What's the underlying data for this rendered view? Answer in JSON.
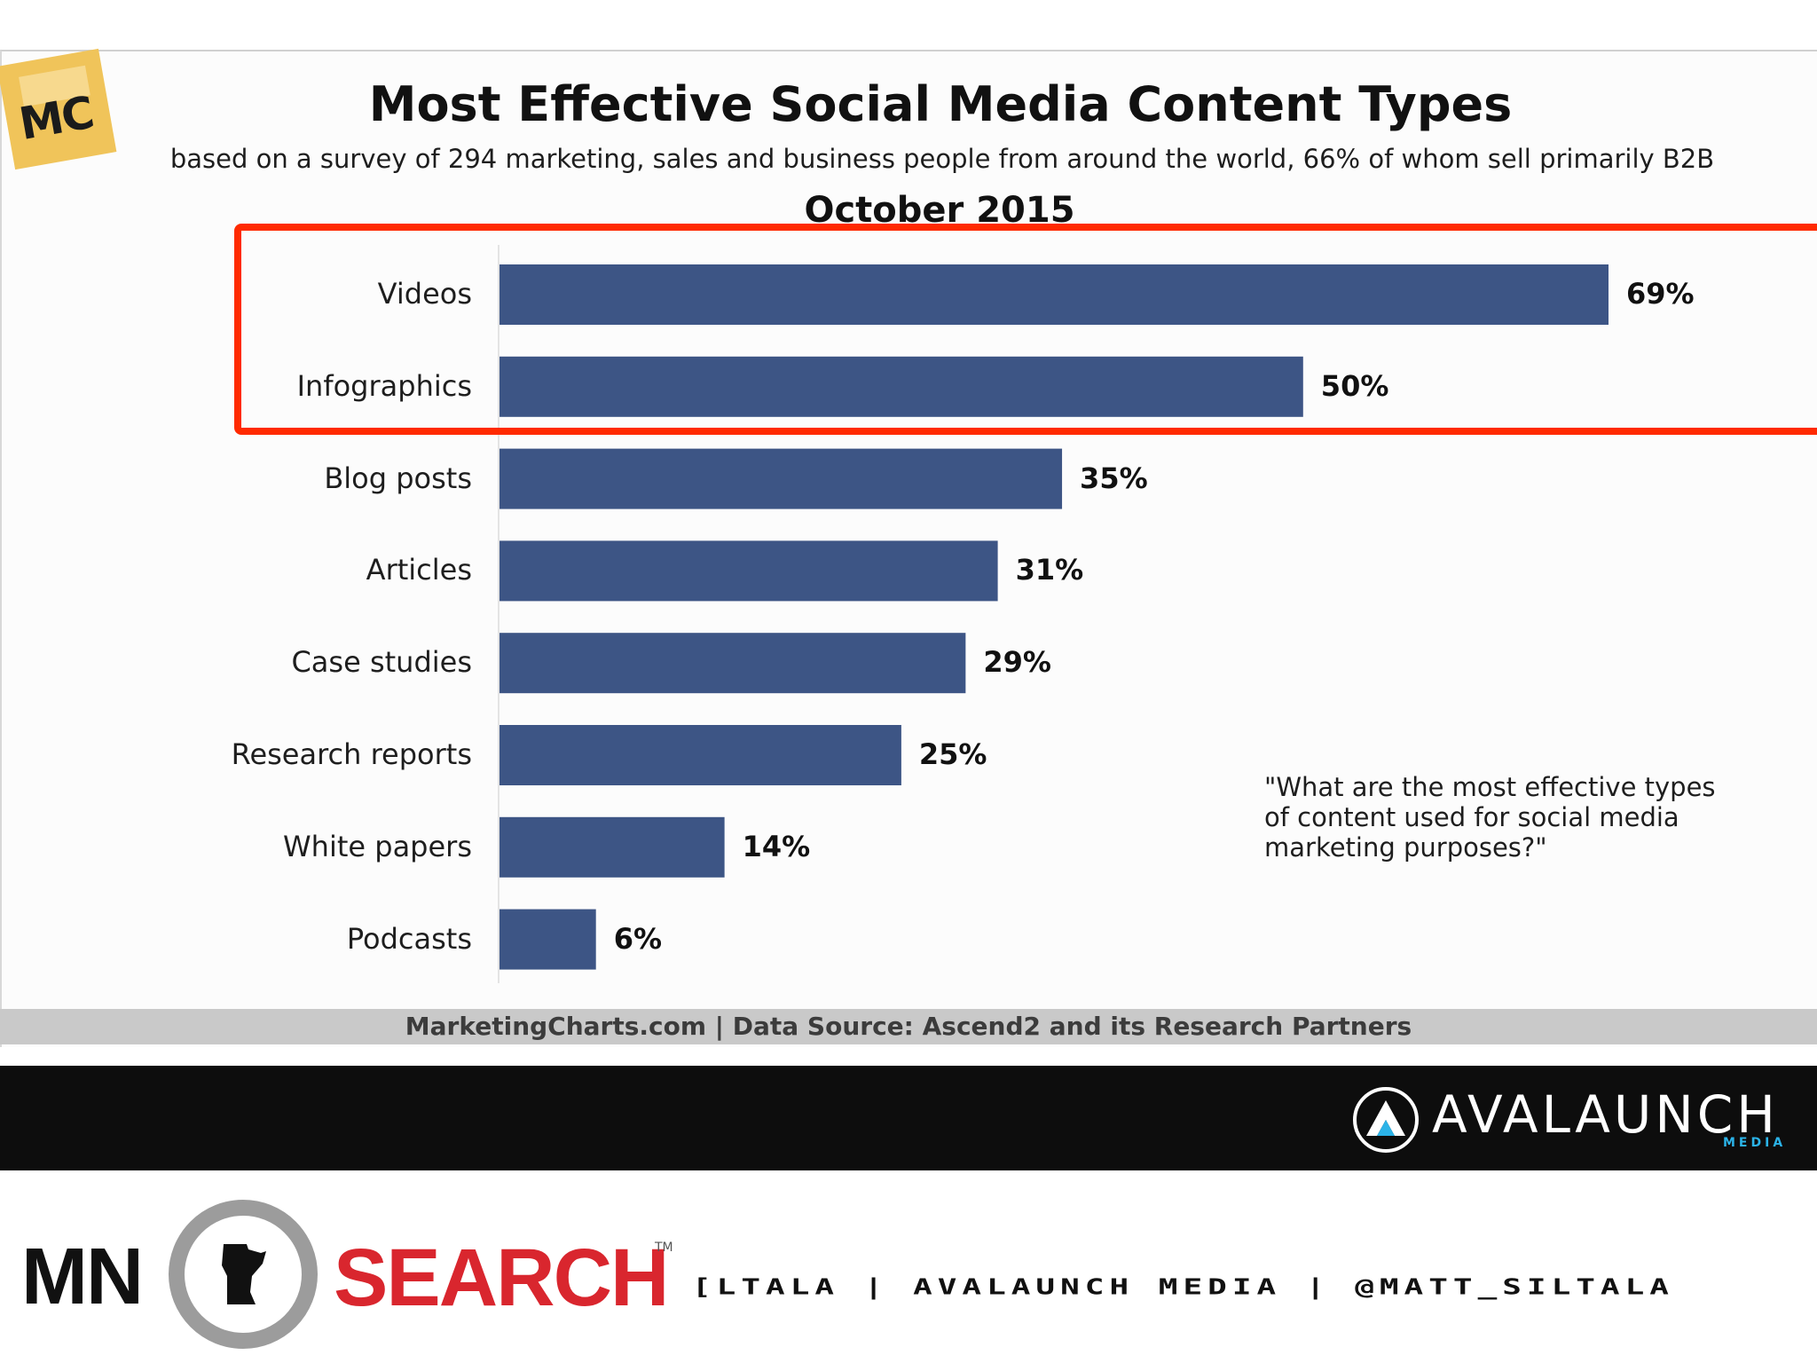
{
  "chart_data": {
    "type": "bar",
    "orientation": "horizontal",
    "title": "Most Effective Social Media Content Types",
    "subtitle": "based on a survey of 294 marketing, sales and business people from around the world, 66% of whom sell primarily B2B",
    "date": "October 2015",
    "categories": [
      "Videos",
      "Infographics",
      "Blog posts",
      "Articles",
      "Case studies",
      "Research reports",
      "White papers",
      "Podcasts"
    ],
    "values": [
      69,
      50,
      35,
      31,
      29,
      25,
      14,
      6
    ],
    "value_labels": [
      "69%",
      "50%",
      "35%",
      "31%",
      "29%",
      "25%",
      "14%",
      "6%"
    ],
    "xlim": [
      0,
      69
    ],
    "xlabel": "",
    "ylabel": "",
    "bar_color": "#3d5585",
    "highlighted_categories": [
      "Videos",
      "Infographics"
    ],
    "highlight_color": "#ff2a00",
    "annotation": "\"What are the most effective types of content used for social media marketing purposes?\"",
    "source": "MarketingCharts.com | Data Source: Ascend2 and its Research Partners"
  },
  "logos": {
    "marketingcharts": "MC",
    "avalaunch": "AVALAUNCH",
    "avalaunch_sub": "MEDIA",
    "mnsearch_left": "MN",
    "mnsearch_right": "SEARCH",
    "mnsearch_tm": "TM"
  },
  "footer": {
    "credits": "[LTALA |   AVALAUNCH MEDIA   |   @MATT_SILTALA"
  }
}
